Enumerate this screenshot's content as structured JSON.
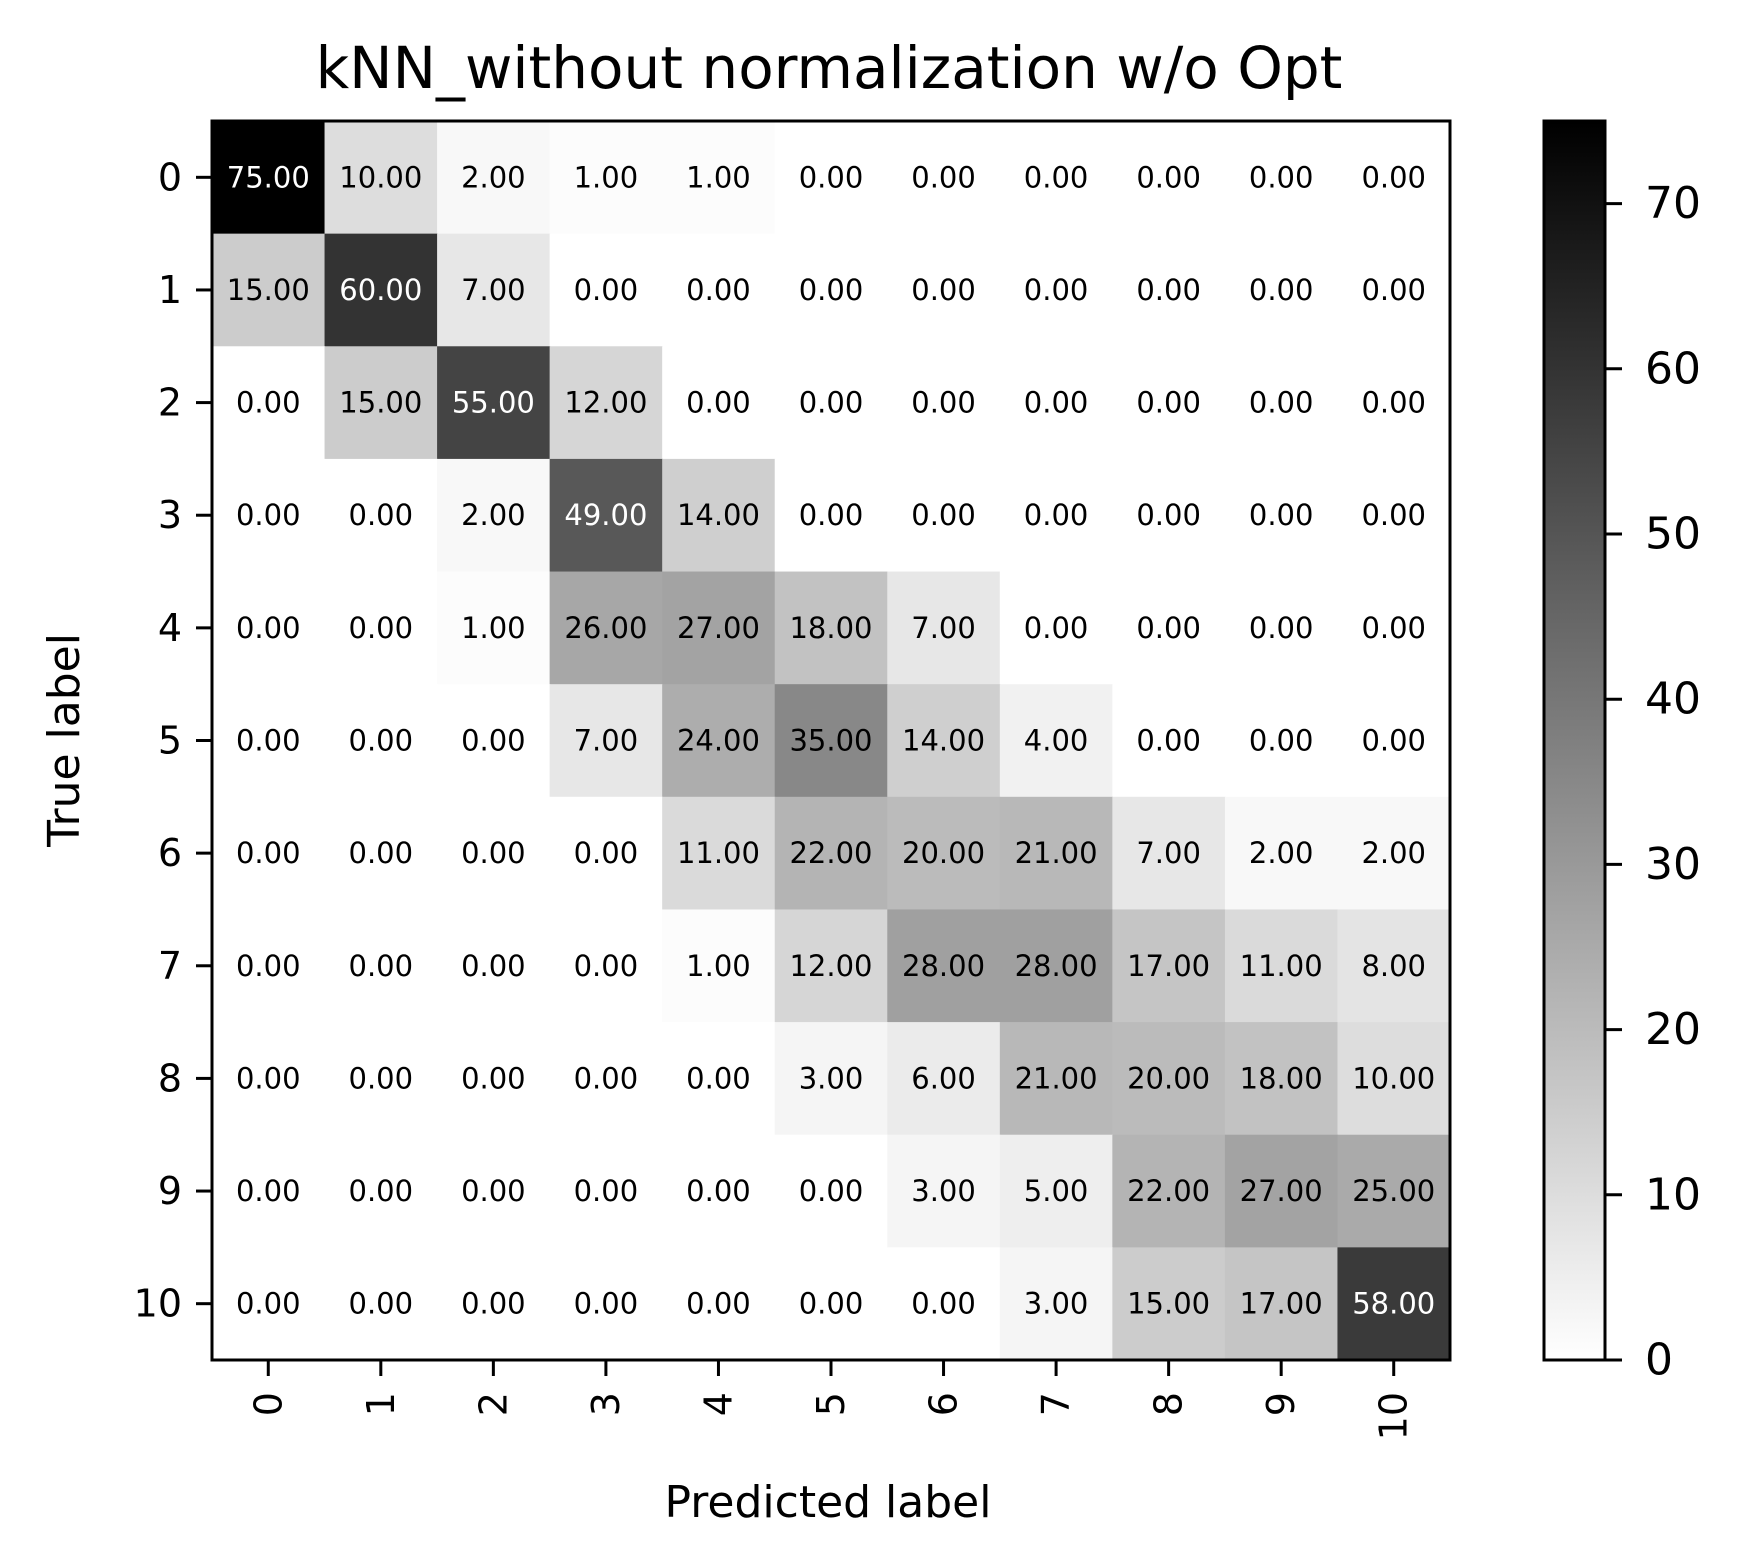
{
  "chart_data": {
    "type": "heatmap",
    "title": "kNN_without normalization w/o Opt",
    "xlabel": "Predicted label",
    "ylabel": "True label",
    "x_categories": [
      "0",
      "1",
      "2",
      "3",
      "4",
      "5",
      "6",
      "7",
      "8",
      "9",
      "10"
    ],
    "y_categories": [
      "0",
      "1",
      "2",
      "3",
      "4",
      "5",
      "6",
      "7",
      "8",
      "9",
      "10"
    ],
    "values": [
      [
        75,
        10,
        2,
        1,
        1,
        0,
        0,
        0,
        0,
        0,
        0
      ],
      [
        15,
        60,
        7,
        0,
        0,
        0,
        0,
        0,
        0,
        0,
        0
      ],
      [
        0,
        15,
        55,
        12,
        0,
        0,
        0,
        0,
        0,
        0,
        0
      ],
      [
        0,
        0,
        2,
        49,
        14,
        0,
        0,
        0,
        0,
        0,
        0
      ],
      [
        0,
        0,
        1,
        26,
        27,
        18,
        7,
        0,
        0,
        0,
        0
      ],
      [
        0,
        0,
        0,
        7,
        24,
        35,
        14,
        4,
        0,
        0,
        0
      ],
      [
        0,
        0,
        0,
        0,
        11,
        22,
        20,
        21,
        7,
        2,
        2
      ],
      [
        0,
        0,
        0,
        0,
        1,
        12,
        28,
        28,
        17,
        11,
        8
      ],
      [
        0,
        0,
        0,
        0,
        0,
        3,
        6,
        21,
        20,
        18,
        10
      ],
      [
        0,
        0,
        0,
        0,
        0,
        0,
        3,
        5,
        22,
        27,
        25
      ],
      [
        0,
        0,
        0,
        0,
        0,
        0,
        0,
        3,
        15,
        17,
        58
      ]
    ],
    "value_format": "0.00",
    "colormap": "Greys",
    "colorbar": {
      "range": [
        0,
        75
      ],
      "ticks": [
        0,
        10,
        20,
        30,
        40,
        50,
        60,
        70
      ]
    },
    "x_tick_rotation": "vertical",
    "grid": false
  }
}
